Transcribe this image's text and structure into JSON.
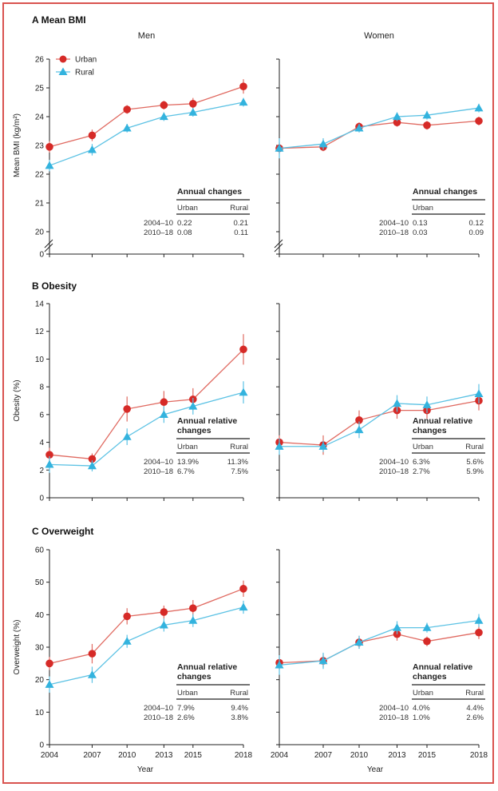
{
  "colors": {
    "urban": "#d62a27",
    "urban_line": "#e06a61",
    "rural": "#33b3de",
    "rural_line": "#5cc2e4",
    "frame": "#d9534f",
    "axis": "#222222"
  },
  "legend": {
    "position": "top-left",
    "items": [
      "Urban",
      "Rural"
    ]
  },
  "columns": [
    "Men",
    "Women"
  ],
  "x_axis": {
    "label": "Year",
    "ticks": [
      "2004",
      "2007",
      "2010",
      "2013",
      "2015",
      "2018"
    ]
  },
  "chart_data": [
    {
      "type": "line",
      "panel": "A",
      "title": "Mean BMI",
      "column": "Men",
      "ylabel": "Mean BMI (kg/m²)",
      "ylim": [
        20,
        26
      ],
      "yticks": [
        "20",
        "21",
        "22",
        "23",
        "24",
        "25",
        "26"
      ],
      "axis_break": true,
      "bottom_tick": "0",
      "x": [
        2004,
        2007,
        2010,
        2013,
        2015,
        2018
      ],
      "series": [
        {
          "name": "Urban",
          "values": [
            22.95,
            23.35,
            24.25,
            24.4,
            24.45,
            25.05
          ],
          "err": [
            0.2,
            0.2,
            0.15,
            0.15,
            0.2,
            0.25
          ]
        },
        {
          "name": "Rural",
          "values": [
            22.3,
            22.85,
            23.6,
            24.0,
            24.15,
            24.5
          ],
          "err": [
            0.2,
            0.2,
            0.15,
            0.15,
            0.15,
            0.15
          ]
        }
      ],
      "table": {
        "title": [
          "Annual changes"
        ],
        "headers": [
          "Urban",
          "Rural"
        ],
        "rows": [
          {
            "period": "2004–10",
            "urban": "0.22",
            "rural": "0.21"
          },
          {
            "period": "2010–18",
            "urban": "0.08",
            "rural": "0.11"
          }
        ]
      }
    },
    {
      "type": "line",
      "panel": "A",
      "title": "",
      "column": "Women",
      "ylabel": "",
      "ylim": [
        20,
        26
      ],
      "yticks": [],
      "axis_break": true,
      "x": [
        2004,
        2007,
        2010,
        2013,
        2015,
        2018
      ],
      "series": [
        {
          "name": "Urban",
          "values": [
            22.9,
            22.95,
            23.65,
            23.8,
            23.7,
            23.85
          ],
          "err": [
            0.2,
            0.15,
            0.15,
            0.15,
            0.15,
            0.15
          ]
        },
        {
          "name": "Rural",
          "values": [
            22.9,
            23.05,
            23.6,
            24.0,
            24.05,
            24.3
          ],
          "err": [
            0.35,
            0.2,
            0.15,
            0.15,
            0.15,
            0.15
          ]
        }
      ],
      "table": {
        "title": [
          "Annual changes"
        ],
        "headers": [
          "Urban",
          ""
        ],
        "rows": [
          {
            "period": "2004–10",
            "urban": "0.13",
            "rural": "0.12"
          },
          {
            "period": "2010–18",
            "urban": "0.03",
            "rural": "0.09"
          }
        ]
      }
    },
    {
      "type": "line",
      "panel": "B",
      "title": "Obesity",
      "column": "Men",
      "ylabel": "Obesity (%)",
      "ylim": [
        0,
        14
      ],
      "yticks": [
        "0",
        "2",
        "4",
        "6",
        "8",
        "10",
        "12",
        "14"
      ],
      "x": [
        2004,
        2007,
        2010,
        2013,
        2015,
        2018
      ],
      "series": [
        {
          "name": "Urban",
          "values": [
            3.1,
            2.8,
            6.4,
            6.9,
            7.1,
            10.7
          ],
          "err": [
            0.5,
            0.4,
            0.9,
            0.8,
            0.8,
            1.1
          ]
        },
        {
          "name": "Rural",
          "values": [
            2.4,
            2.3,
            4.4,
            6.0,
            6.6,
            7.6
          ],
          "err": [
            0.6,
            0.4,
            0.6,
            0.6,
            0.6,
            0.8
          ]
        }
      ],
      "table": {
        "title": [
          "Annual relative",
          "changes"
        ],
        "headers": [
          "Urban",
          "Rural"
        ],
        "rows": [
          {
            "period": "2004–10",
            "urban": "13.9%",
            "rural": "11.3%"
          },
          {
            "period": "2010–18",
            "urban": "6.7%",
            "rural": "7.5%"
          }
        ]
      }
    },
    {
      "type": "line",
      "panel": "B",
      "title": "",
      "column": "Women",
      "ylabel": "",
      "ylim": [
        0,
        14
      ],
      "yticks": [],
      "x": [
        2004,
        2007,
        2010,
        2013,
        2015,
        2018
      ],
      "series": [
        {
          "name": "Urban",
          "values": [
            4.0,
            3.8,
            5.6,
            6.3,
            6.3,
            7.0
          ],
          "err": [
            0.5,
            0.7,
            0.7,
            0.6,
            0.6,
            0.7
          ]
        },
        {
          "name": "Rural",
          "values": [
            3.7,
            3.7,
            4.9,
            6.8,
            6.7,
            7.5
          ],
          "err": [
            0.6,
            0.4,
            0.6,
            0.6,
            0.6,
            0.7
          ]
        }
      ],
      "table": {
        "title": [
          "Annual relative",
          "changes"
        ],
        "headers": [
          "Urban",
          "Rural"
        ],
        "rows": [
          {
            "period": "2004–10",
            "urban": "6.3%",
            "rural": "5.6%"
          },
          {
            "period": "2010–18",
            "urban": "2.7%",
            "rural": "5.9%"
          }
        ]
      }
    },
    {
      "type": "line",
      "panel": "C",
      "title": "Overweight",
      "column": "Men",
      "ylabel": "Overweight (%)",
      "ylim": [
        0,
        60
      ],
      "yticks": [
        "0",
        "10",
        "20",
        "30",
        "40",
        "50",
        "60"
      ],
      "x": [
        2004,
        2007,
        2010,
        2013,
        2015,
        2018
      ],
      "series": [
        {
          "name": "Urban",
          "values": [
            25.0,
            28.0,
            39.5,
            40.8,
            42.0,
            48.0
          ],
          "err": [
            2.0,
            3.0,
            2.5,
            2.0,
            2.5,
            2.5
          ]
        },
        {
          "name": "Rural",
          "values": [
            18.5,
            21.5,
            31.8,
            36.8,
            38.2,
            42.3
          ],
          "err": [
            2.5,
            2.5,
            2.0,
            2.0,
            2.0,
            2.0
          ]
        }
      ],
      "table": {
        "title": [
          "Annual relative",
          "changes"
        ],
        "headers": [
          "Urban",
          "Rural"
        ],
        "rows": [
          {
            "period": "2004–10",
            "urban": "7.9%",
            "rural": "9.4%"
          },
          {
            "period": "2010–18",
            "urban": "2.6%",
            "rural": "3.8%"
          }
        ]
      }
    },
    {
      "type": "line",
      "panel": "C",
      "title": "",
      "column": "Women",
      "ylabel": "",
      "ylim": [
        0,
        60
      ],
      "yticks": [],
      "x": [
        2004,
        2007,
        2010,
        2013,
        2015,
        2018
      ],
      "series": [
        {
          "name": "Urban",
          "values": [
            25.2,
            25.8,
            31.5,
            34.0,
            31.8,
            34.5
          ],
          "err": [
            2.0,
            2.0,
            2.0,
            2.0,
            1.5,
            2.0
          ]
        },
        {
          "name": "Rural",
          "values": [
            24.5,
            25.8,
            31.5,
            36.0,
            36.0,
            38.2
          ],
          "err": [
            3.0,
            2.5,
            2.0,
            2.0,
            1.5,
            2.0
          ]
        }
      ],
      "table": {
        "title": [
          "Annual relative",
          "changes"
        ],
        "headers": [
          "Urban",
          "Rural"
        ],
        "rows": [
          {
            "period": "2004–10",
            "urban": "4.0%",
            "rural": "4.4%"
          },
          {
            "period": "2010–18",
            "urban": "1.0%",
            "rural": "2.6%"
          }
        ]
      }
    }
  ]
}
